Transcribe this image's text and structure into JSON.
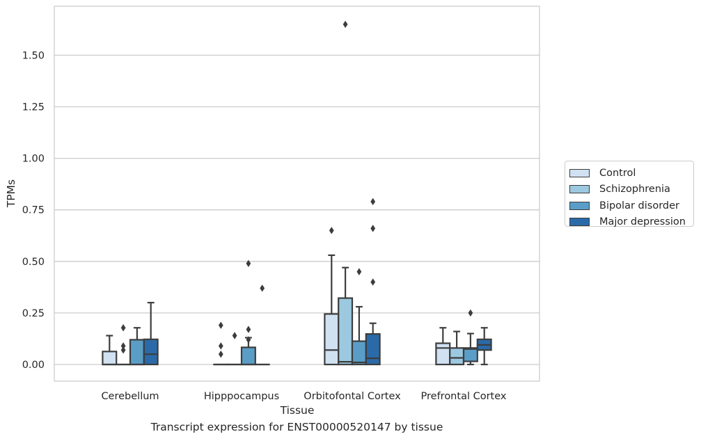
{
  "chart_data": {
    "type": "box",
    "caption": "Transcript expression for ENST00000520147 by tissue",
    "xlabel": "Tissue",
    "ylabel": "TPMs",
    "ylim": [
      -0.08,
      1.74
    ],
    "yticks": [
      "0.00",
      "0.25",
      "0.50",
      "0.75",
      "1.00",
      "1.25",
      "1.50"
    ],
    "grid": "horizontal",
    "legend_position": "right",
    "categories": [
      "Cerebellum",
      "Hipppocampus",
      "Orbitofontal Cortex",
      "Prefrontal Cortex"
    ],
    "series": [
      {
        "name": "Control",
        "color": "#d0e1f2",
        "boxes": [
          {
            "whislo": 0,
            "q1": 0,
            "med": 0,
            "q3": 0.063,
            "whishi": 0.14,
            "fliers": []
          },
          {
            "whislo": 0,
            "q1": 0,
            "med": 0,
            "q3": 0,
            "whishi": 0,
            "fliers": [
              0.19,
              0.09,
              0.05
            ]
          },
          {
            "whislo": 0,
            "q1": 0,
            "med": 0.07,
            "q3": 0.245,
            "whishi": 0.53,
            "fliers": [
              0.65
            ]
          },
          {
            "whislo": 0,
            "q1": 0,
            "med": 0.08,
            "q3": 0.103,
            "whishi": 0.178,
            "fliers": []
          }
        ]
      },
      {
        "name": "Schizophrenia",
        "color": "#9cc9e0",
        "boxes": [
          {
            "whislo": 0,
            "q1": 0,
            "med": 0,
            "q3": 0,
            "whishi": 0,
            "fliers": [
              0.178,
              0.09,
              0.07
            ]
          },
          {
            "whislo": 0,
            "q1": 0,
            "med": 0,
            "q3": 0,
            "whishi": 0,
            "fliers": [
              0.14
            ]
          },
          {
            "whislo": 0,
            "q1": 0,
            "med": 0.013,
            "q3": 0.322,
            "whishi": 0.47,
            "fliers": [
              1.65
            ]
          },
          {
            "whislo": 0,
            "q1": 0,
            "med": 0.032,
            "q3": 0.08,
            "whishi": 0.16,
            "fliers": []
          }
        ]
      },
      {
        "name": "Bipolar disorder",
        "color": "#5a9ec8",
        "boxes": [
          {
            "whislo": 0,
            "q1": 0,
            "med": 0,
            "q3": 0.12,
            "whishi": 0.178,
            "fliers": []
          },
          {
            "whislo": 0,
            "q1": 0,
            "med": 0,
            "q3": 0.083,
            "whishi": 0.13,
            "fliers": [
              0.49,
              0.17,
              0.12
            ]
          },
          {
            "whislo": 0,
            "q1": 0,
            "med": 0.01,
            "q3": 0.113,
            "whishi": 0.28,
            "fliers": [
              0.45
            ]
          },
          {
            "whislo": 0,
            "q1": 0.015,
            "med": 0.075,
            "q3": 0.08,
            "whishi": 0.15,
            "fliers": [
              0.25
            ]
          }
        ]
      },
      {
        "name": "Major depression",
        "color": "#2a6aa8",
        "boxes": [
          {
            "whislo": 0,
            "q1": 0,
            "med": 0.05,
            "q3": 0.122,
            "whishi": 0.3,
            "fliers": []
          },
          {
            "whislo": 0,
            "q1": 0,
            "med": 0,
            "q3": 0,
            "whishi": 0,
            "fliers": [
              0.37
            ]
          },
          {
            "whislo": 0,
            "q1": 0,
            "med": 0.03,
            "q3": 0.148,
            "whishi": 0.2,
            "fliers": [
              0.79,
              0.66,
              0.4
            ]
          },
          {
            "whislo": 0,
            "q1": 0.07,
            "med": 0.095,
            "q3": 0.122,
            "whishi": 0.178,
            "fliers": []
          }
        ]
      }
    ]
  }
}
